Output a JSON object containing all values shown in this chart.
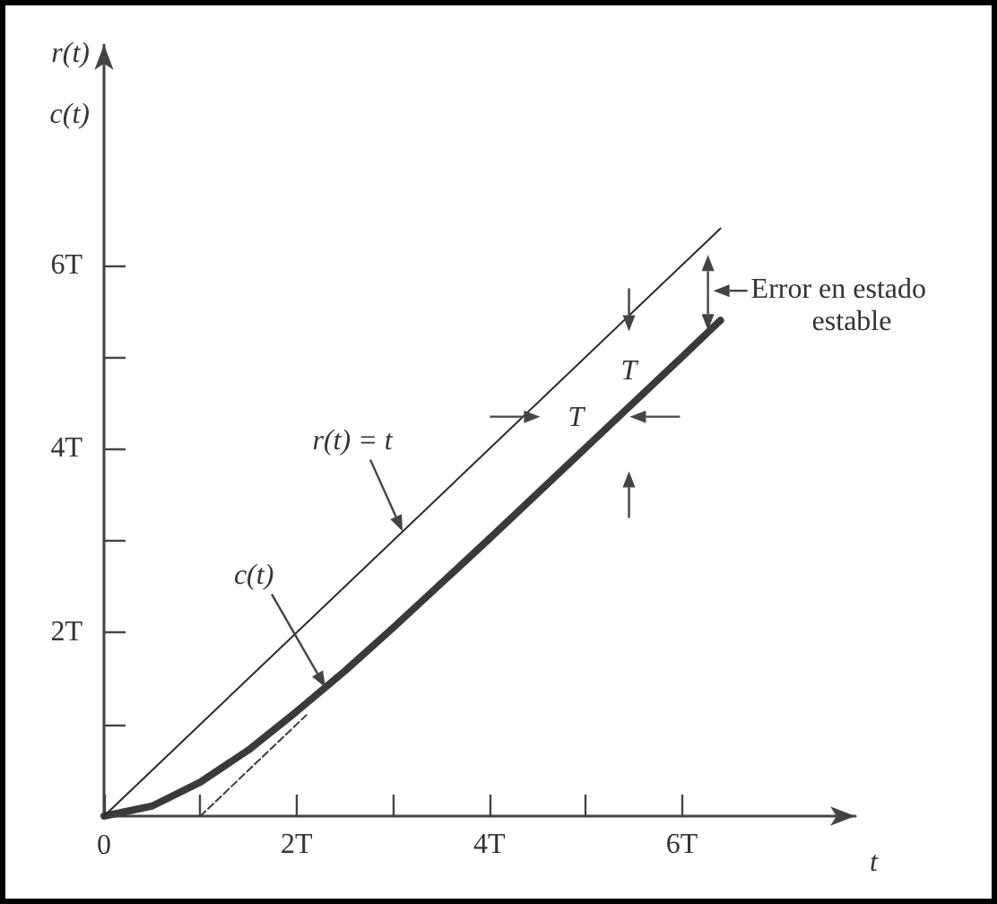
{
  "chart_data": {
    "type": "line",
    "xlabel": "t",
    "ylabel": "r(t)\nc(t)",
    "xlim": [
      0,
      7.8
    ],
    "ylim": [
      0,
      8.4
    ],
    "xticks": [
      0,
      {
        "value": 1,
        "label": null
      },
      {
        "value": 2,
        "label": "2T"
      },
      {
        "value": 3,
        "label": null
      },
      {
        "value": 4,
        "label": "4T"
      },
      {
        "value": 5,
        "label": null
      },
      {
        "value": 6,
        "label": "6T"
      }
    ],
    "yticks": [
      {
        "value": 1,
        "label": null
      },
      {
        "value": 2,
        "label": "2T"
      },
      {
        "value": 3,
        "label": null
      },
      {
        "value": 4,
        "label": "4T"
      },
      {
        "value": 5,
        "label": null
      },
      {
        "value": 6,
        "label": "6T"
      }
    ],
    "grid": false,
    "marker": "none",
    "series": [
      {
        "color": "#2a2a2a",
        "x": [
          0,
          6.4
        ],
        "values": [
          0,
          6.4
        ],
        "line_style": "solid"
      },
      {
        "color": "#3a3a3a",
        "x": [
          0,
          0.5,
          1,
          1.5,
          2,
          2.5,
          3,
          4,
          5,
          6,
          6.4
        ],
        "values": [
          0,
          0.11,
          0.37,
          0.72,
          1.14,
          1.58,
          2.05,
          3.02,
          4.01,
          5.0,
          5.4
        ],
        "line_style": "solid"
      },
      {
        "color": "#3a3a3a",
        "x": [
          1,
          2.1
        ],
        "values": [
          0,
          1.1
        ],
        "line_style": "dashed"
      }
    ],
    "annotations": [
      {
        "text": "r(t) = t",
        "x": 3.1,
        "y": 3.1
      },
      {
        "text": "c(t)",
        "x": 2.3,
        "y": 1.4
      },
      "T",
      "T",
      "Error en estado estable"
    ]
  }
}
